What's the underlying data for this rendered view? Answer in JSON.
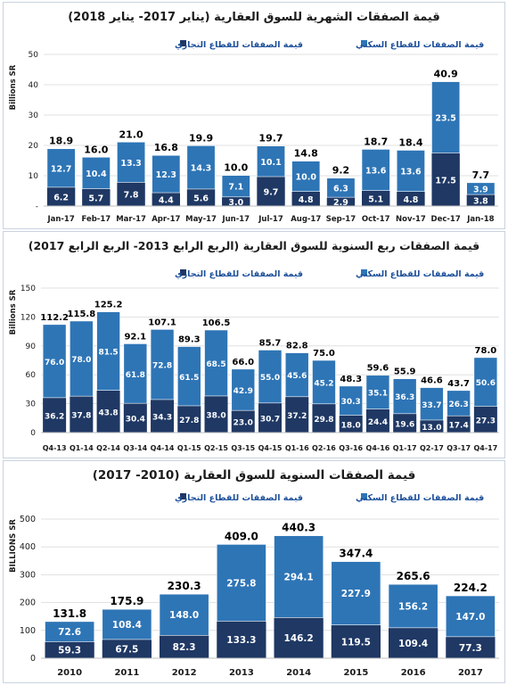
{
  "colors": {
    "residential": "#2e75b6",
    "commercial": "#1f3864",
    "grid": "#d9d9d9",
    "legend_text": "#1c4f9a"
  },
  "chart_data": [
    {
      "type": "bar",
      "stacked": true,
      "title": "قيمة الصفقات الشهرية للسوق العقارية (يناير 2017- يناير 2018)",
      "ylabel": "Billions SR",
      "ylim": [
        0,
        50
      ],
      "yticks": [
        "-",
        "10",
        "20",
        "30",
        "40",
        "50"
      ],
      "legend": [
        "قيمة الصفقات للقطاع السكني",
        "قيمة الصفقات للقطاع التجاري"
      ],
      "categories": [
        "Jan-17",
        "Feb-17",
        "Mar-17",
        "Apr-17",
        "May-17",
        "Jun-17",
        "Jul-17",
        "Aug-17",
        "Sep-17",
        "Oct-17",
        "Nov-17",
        "Dec-17",
        "Jan-18"
      ],
      "series": [
        {
          "name": "قيمة الصفقات للقطاع التجاري",
          "values": [
            6.2,
            5.7,
            7.8,
            4.4,
            5.6,
            3.0,
            9.7,
            4.8,
            2.9,
            5.1,
            4.8,
            17.5,
            3.8
          ]
        },
        {
          "name": "قيمة الصفقات للقطاع السكني",
          "values": [
            12.7,
            10.4,
            13.3,
            12.3,
            14.3,
            7.1,
            10.1,
            10.0,
            6.3,
            13.6,
            13.6,
            23.5,
            3.9
          ]
        }
      ],
      "totals": [
        18.9,
        16.0,
        21.0,
        16.8,
        19.9,
        10.0,
        19.7,
        14.8,
        9.2,
        18.7,
        18.4,
        40.9,
        7.7
      ]
    },
    {
      "type": "bar",
      "stacked": true,
      "title": "قيمة الصفقات ربع السنوية للسوق العقارية (الربع الرابع 2013- الربع الرابع 2017)",
      "ylabel": "Billions SR",
      "ylim": [
        0,
        150
      ],
      "yticks": [
        "0",
        "30",
        "60",
        "90",
        "120",
        "150"
      ],
      "legend": [
        "قيمة الصفقات للقطاع السكني",
        "قيمة الصفقات للقطاع التجاري"
      ],
      "categories": [
        "Q4-13",
        "Q1-14",
        "Q2-14",
        "Q3-14",
        "Q4-14",
        "Q1-15",
        "Q2-15",
        "Q3-15",
        "Q4-15",
        "Q1-16",
        "Q2-16",
        "Q3-16",
        "Q4-16",
        "Q1-17",
        "Q2-17",
        "Q3-17",
        "Q4-17"
      ],
      "series": [
        {
          "name": "قيمة الصفقات للقطاع التجاري",
          "values": [
            36.2,
            37.8,
            43.8,
            30.4,
            34.3,
            27.8,
            38.0,
            23.0,
            30.7,
            37.2,
            29.8,
            18.0,
            24.4,
            19.6,
            13.0,
            17.4,
            27.3
          ]
        },
        {
          "name": "قيمة الصفقات للقطاع السكني",
          "values": [
            76.0,
            78.0,
            81.5,
            61.8,
            72.8,
            61.5,
            68.5,
            42.9,
            55.0,
            45.6,
            45.2,
            30.3,
            35.1,
            36.3,
            33.7,
            26.3,
            50.6
          ]
        }
      ],
      "totals": [
        112.2,
        115.8,
        125.2,
        92.1,
        107.1,
        89.3,
        106.5,
        66.0,
        85.7,
        82.8,
        75.0,
        48.3,
        59.6,
        55.9,
        46.6,
        43.7,
        78.0
      ]
    },
    {
      "type": "bar",
      "stacked": true,
      "title": "قيمة الصفقات السنوية للسوق العقارية (2010- 2017)",
      "ylabel": "BILLIONS SR",
      "ylim": [
        0,
        500
      ],
      "yticks": [
        "0",
        "100",
        "200",
        "300",
        "400",
        "500"
      ],
      "legend": [
        "قيمة الصفقات للقطاع السكني",
        "قيمة الصفقات للقطاع التجاري"
      ],
      "categories": [
        "2010",
        "2011",
        "2012",
        "2013",
        "2014",
        "2015",
        "2016",
        "2017"
      ],
      "series": [
        {
          "name": "قيمة الصفقات للقطاع التجاري",
          "values": [
            59.3,
            67.5,
            82.3,
            133.3,
            146.2,
            119.5,
            109.4,
            77.3
          ]
        },
        {
          "name": "قيمة الصفقات للقطاع السكني",
          "values": [
            72.6,
            108.4,
            148.0,
            275.8,
            294.1,
            227.9,
            156.2,
            147.0
          ]
        }
      ],
      "totals": [
        131.8,
        175.9,
        230.3,
        409.0,
        440.3,
        347.4,
        265.6,
        224.2
      ]
    }
  ]
}
